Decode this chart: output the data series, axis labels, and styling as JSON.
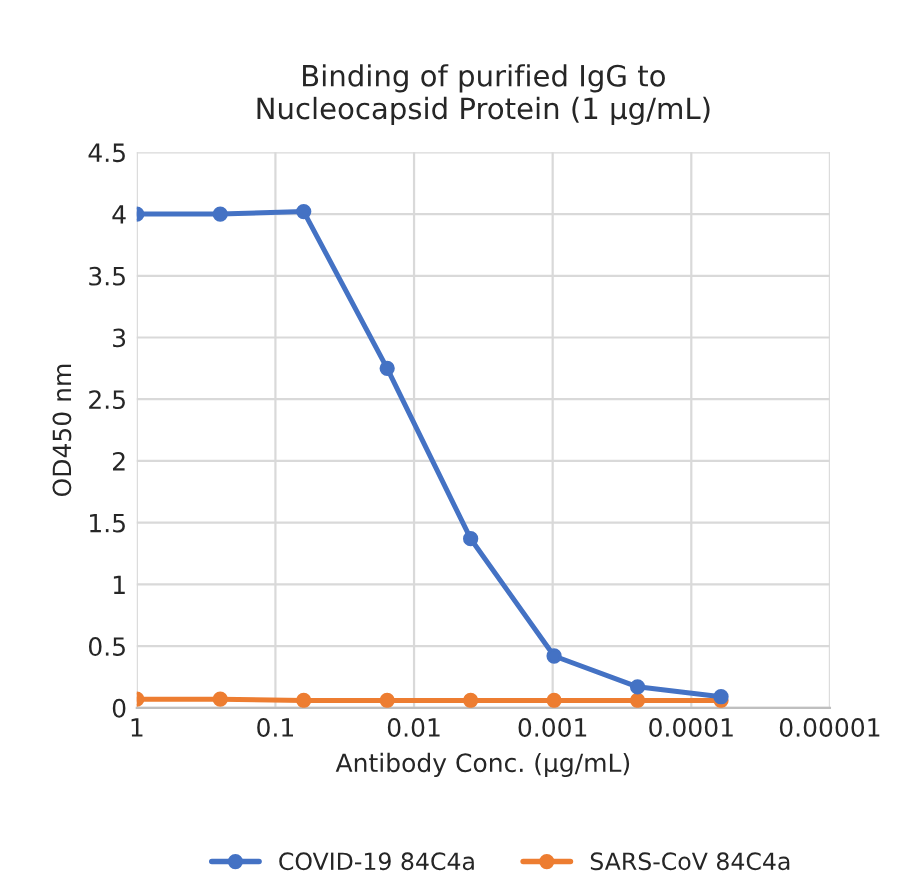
{
  "chart_data": {
    "type": "line",
    "title": "Binding of purified IgG to\nNucleocapsid Protein (1 µg/mL)",
    "xlabel": "Antibody Conc. (µg/mL)",
    "ylabel": "OD450 nm",
    "x": [
      1,
      0.25,
      0.0625,
      0.015625,
      0.00390625,
      0.0009765625,
      0.000244140625,
      6.103515625e-05
    ],
    "series": [
      {
        "name": "COVID-19 84C4a",
        "color": "#4472c4",
        "values": [
          4.0,
          4.0,
          4.02,
          2.75,
          1.37,
          0.42,
          0.17,
          0.09
        ]
      },
      {
        "name": "SARS-CoV 84C4a",
        "color": "#ed7d31",
        "values": [
          0.07,
          0.07,
          0.06,
          0.06,
          0.06,
          0.06,
          0.06,
          0.06
        ]
      }
    ],
    "log": "x",
    "xlim": [
      1,
      1e-05
    ],
    "xticks": [
      {
        "value": 1,
        "label": "1"
      },
      {
        "value": 0.1,
        "label": "0.1"
      },
      {
        "value": 0.01,
        "label": "0.01"
      },
      {
        "value": 0.001,
        "label": "0.001"
      },
      {
        "value": 0.0001,
        "label": "0.0001"
      },
      {
        "value": 1e-05,
        "label": "0.00001"
      }
    ],
    "ylim": [
      0,
      4.5
    ],
    "yticks": [
      0,
      0.5,
      1,
      1.5,
      2,
      2.5,
      3,
      3.5,
      4,
      4.5
    ],
    "grid": true,
    "legend": "bottom",
    "marker": "circle",
    "line_style": "solid"
  }
}
